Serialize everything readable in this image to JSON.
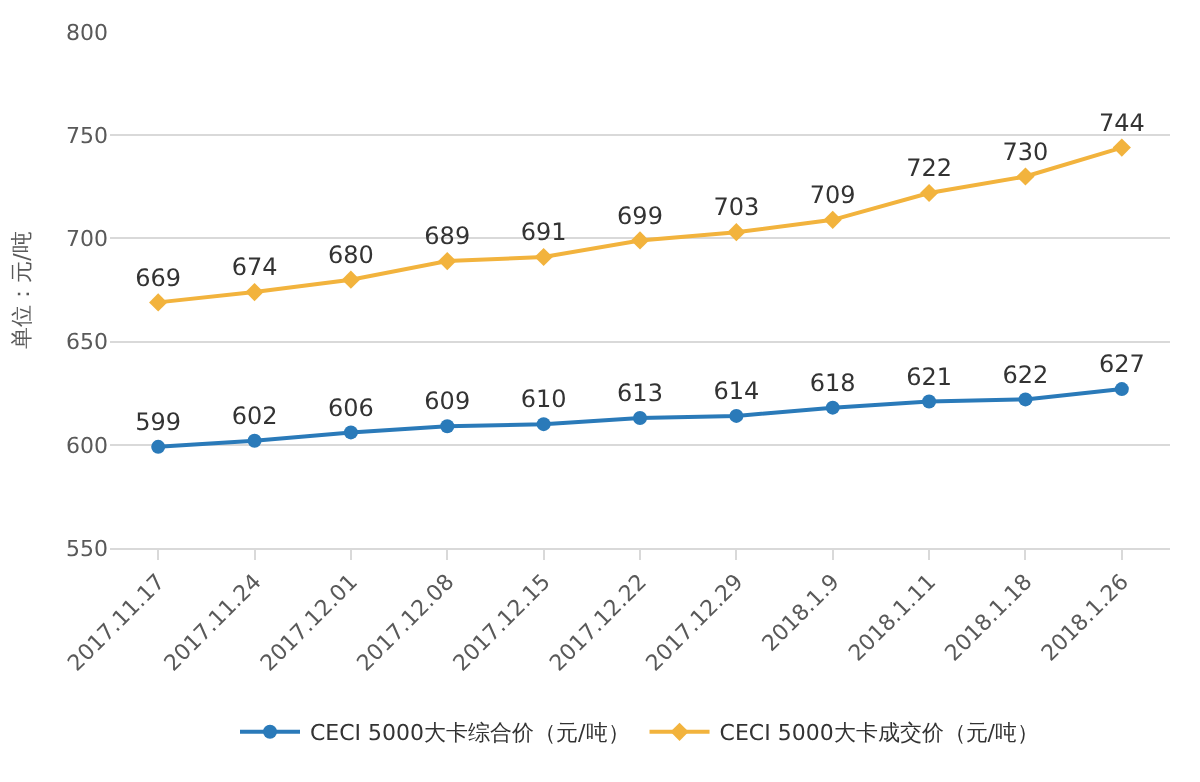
{
  "chart_data": {
    "type": "line",
    "ylabel": "单位：元/吨",
    "categories": [
      "2017.11.17",
      "2017.11.24",
      "2017.12.01",
      "2017.12.08",
      "2017.12.15",
      "2017.12.22",
      "2017.12.29",
      "2018.1.9",
      "2018.1.11",
      "2018.1.18",
      "2018.1.26"
    ],
    "series": [
      {
        "name": "CECI 5000大卡综合价（元/吨）",
        "color": "#2a7ab9",
        "marker": "circle",
        "values": [
          599,
          602,
          606,
          609,
          610,
          613,
          614,
          618,
          621,
          622,
          627
        ]
      },
      {
        "name": "CECI 5000大卡成交价（元/吨）",
        "color": "#f2b33d",
        "marker": "diamond",
        "values": [
          669,
          674,
          680,
          689,
          691,
          699,
          703,
          709,
          722,
          730,
          744
        ]
      }
    ],
    "ylim": [
      550,
      800
    ],
    "yticks": [
      550,
      600,
      650,
      700,
      750,
      800
    ],
    "grid": "y",
    "legend": "bottom",
    "data_labels": true,
    "line_style": "solid"
  }
}
